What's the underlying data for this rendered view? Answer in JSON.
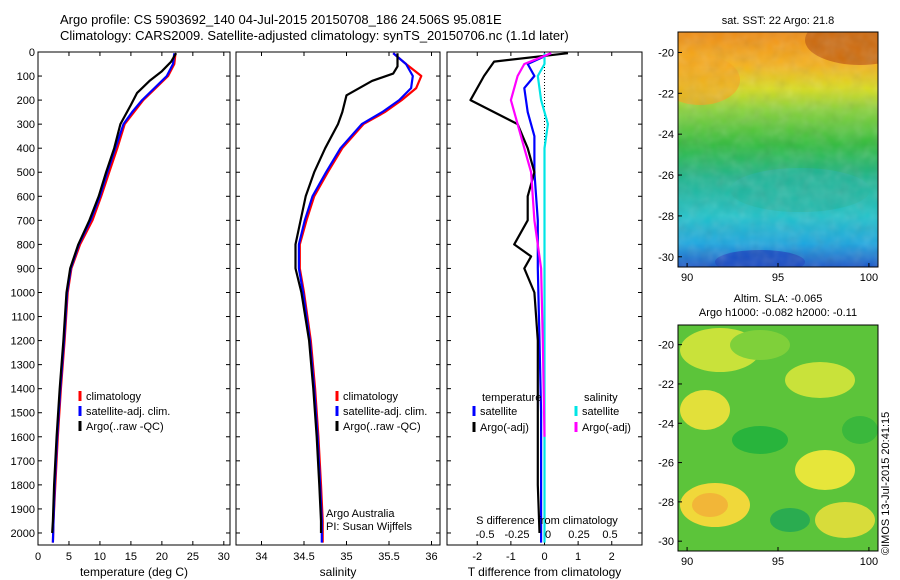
{
  "header": {
    "line1": "Argo profile: CS 5903692_140 04-Jul-2015 20150708_186 24.506S 95.081E",
    "line2": "Climatology: CARS2009. Satellite-adjusted climatology: synTS_20150706.nc (1.1d later)"
  },
  "stamp": "©IMOS 13-Jul-2015 20:41:15",
  "colors": {
    "climatology": "#ff0000",
    "satellite": "#0000ff",
    "argo": "#000000",
    "sal_satellite": "#00e5e5",
    "sal_argo": "#ff00ff"
  },
  "chart_data": [
    {
      "type": "line",
      "panel": "temperature",
      "xlabel": "temperature (deg C)",
      "ylabel": "",
      "xlim": [
        0,
        31
      ],
      "ylim": [
        2050,
        0
      ],
      "xticks": [
        0,
        5,
        10,
        15,
        20,
        25,
        30
      ],
      "yticks": [
        0,
        100,
        200,
        300,
        400,
        500,
        600,
        700,
        800,
        900,
        1000,
        1100,
        1200,
        1300,
        1400,
        1500,
        1600,
        1700,
        1800,
        1900,
        2000
      ],
      "legend": [
        "climatology",
        "satellite-adj. clim.",
        "Argo(..raw -QC)"
      ],
      "series": [
        {
          "name": "climatology",
          "color": "#ff0000",
          "points": [
            [
              22.2,
              5
            ],
            [
              22.0,
              50
            ],
            [
              21.0,
              100
            ],
            [
              19.0,
              150
            ],
            [
              17.0,
              200
            ],
            [
              15.5,
              250
            ],
            [
              14.0,
              300
            ],
            [
              12.8,
              400
            ],
            [
              11.5,
              500
            ],
            [
              10.2,
              600
            ],
            [
              8.8,
              700
            ],
            [
              6.8,
              800
            ],
            [
              5.4,
              900
            ],
            [
              4.8,
              1000
            ],
            [
              4.3,
              1200
            ],
            [
              3.7,
              1400
            ],
            [
              3.2,
              1600
            ],
            [
              2.8,
              1800
            ],
            [
              2.5,
              1950
            ],
            [
              2.4,
              2040
            ]
          ]
        },
        {
          "name": "satellite-adj. clim.",
          "color": "#0000ff",
          "points": [
            [
              22.0,
              5
            ],
            [
              21.8,
              50
            ],
            [
              20.8,
              100
            ],
            [
              18.8,
              150
            ],
            [
              16.8,
              200
            ],
            [
              15.2,
              250
            ],
            [
              13.8,
              300
            ],
            [
              12.5,
              400
            ],
            [
              11.2,
              500
            ],
            [
              10.0,
              600
            ],
            [
              8.5,
              700
            ],
            [
              6.6,
              800
            ],
            [
              5.3,
              900
            ],
            [
              4.7,
              1000
            ],
            [
              4.2,
              1200
            ],
            [
              3.6,
              1400
            ],
            [
              3.1,
              1600
            ],
            [
              2.7,
              1800
            ],
            [
              2.5,
              1950
            ],
            [
              2.4,
              2040
            ]
          ]
        },
        {
          "name": "Argo(..raw -QC)",
          "color": "#000000",
          "points": [
            [
              22.3,
              5
            ],
            [
              21.5,
              40
            ],
            [
              20.0,
              80
            ],
            [
              18.0,
              120
            ],
            [
              16.0,
              170
            ],
            [
              15.0,
              220
            ],
            [
              13.3,
              300
            ],
            [
              12.3,
              400
            ],
            [
              11.0,
              500
            ],
            [
              9.8,
              600
            ],
            [
              8.3,
              700
            ],
            [
              6.5,
              800
            ],
            [
              5.2,
              900
            ],
            [
              4.6,
              1000
            ],
            [
              4.1,
              1200
            ],
            [
              3.5,
              1400
            ],
            [
              3.0,
              1600
            ],
            [
              2.6,
              1800
            ],
            [
              2.4,
              1950
            ],
            [
              2.3,
              2000
            ]
          ]
        }
      ]
    },
    {
      "type": "line",
      "panel": "salinity",
      "xlabel": "salinity",
      "ylabel": "",
      "xlim": [
        33.7,
        36.1
      ],
      "ylim": [
        2050,
        0
      ],
      "xticks": [
        34,
        34.5,
        35,
        35.5,
        36
      ],
      "legend": [
        "climatology",
        "satellite-adj. clim.",
        "Argo(..raw -QC)"
      ],
      "annotation": [
        "Argo Australia",
        "PI: Susan Wijffels"
      ],
      "series": [
        {
          "name": "climatology",
          "color": "#ff0000",
          "points": [
            [
              35.55,
              5
            ],
            [
              35.7,
              50
            ],
            [
              35.88,
              100
            ],
            [
              35.82,
              150
            ],
            [
              35.65,
              200
            ],
            [
              35.45,
              250
            ],
            [
              35.2,
              300
            ],
            [
              34.95,
              400
            ],
            [
              34.78,
              500
            ],
            [
              34.62,
              600
            ],
            [
              34.53,
              700
            ],
            [
              34.45,
              800
            ],
            [
              34.45,
              900
            ],
            [
              34.5,
              1000
            ],
            [
              34.58,
              1200
            ],
            [
              34.63,
              1400
            ],
            [
              34.67,
              1600
            ],
            [
              34.7,
              1800
            ],
            [
              34.72,
              1950
            ],
            [
              34.72,
              2040
            ]
          ]
        },
        {
          "name": "satellite-adj. clim.",
          "color": "#0000ff",
          "points": [
            [
              35.55,
              5
            ],
            [
              35.7,
              50
            ],
            [
              35.78,
              100
            ],
            [
              35.76,
              150
            ],
            [
              35.62,
              200
            ],
            [
              35.42,
              250
            ],
            [
              35.18,
              300
            ],
            [
              34.93,
              400
            ],
            [
              34.76,
              500
            ],
            [
              34.6,
              600
            ],
            [
              34.51,
              700
            ],
            [
              34.44,
              800
            ],
            [
              34.44,
              900
            ],
            [
              34.49,
              1000
            ],
            [
              34.57,
              1200
            ],
            [
              34.62,
              1400
            ],
            [
              34.66,
              1600
            ],
            [
              34.69,
              1800
            ],
            [
              34.71,
              1950
            ],
            [
              34.71,
              2040
            ]
          ]
        },
        {
          "name": "Argo(..raw -QC)",
          "color": "#000000",
          "points": [
            [
              35.6,
              5
            ],
            [
              35.6,
              60
            ],
            [
              35.55,
              90
            ],
            [
              35.3,
              120
            ],
            [
              35.0,
              180
            ],
            [
              34.95,
              250
            ],
            [
              34.9,
              300
            ],
            [
              34.75,
              400
            ],
            [
              34.62,
              500
            ],
            [
              34.52,
              600
            ],
            [
              34.46,
              700
            ],
            [
              34.4,
              800
            ],
            [
              34.4,
              900
            ],
            [
              34.47,
              1000
            ],
            [
              34.56,
              1200
            ],
            [
              34.61,
              1400
            ],
            [
              34.65,
              1600
            ],
            [
              34.68,
              1800
            ],
            [
              34.7,
              1950
            ],
            [
              34.7,
              2000
            ]
          ]
        }
      ]
    },
    {
      "type": "line",
      "panel": "difference",
      "xlabel": "T difference from climatology",
      "top_axis_label": "S difference from climatology",
      "xlim": [
        -2.9,
        2.9
      ],
      "ylim": [
        2050,
        0
      ],
      "xticks": [
        -2,
        -1,
        0,
        1,
        2
      ],
      "top_ticks": [
        "-0.5",
        "-0.25",
        "0",
        "0.25",
        "0.5"
      ],
      "legend_left_title": "temperature",
      "legend_right_title": "salinity",
      "legend": [
        "satellite",
        "Argo(-adj)",
        "satellite",
        "Argo(-adj)"
      ],
      "series": [
        {
          "name": "temperature satellite",
          "color": "#0000ff",
          "points": [
            [
              0.2,
              5
            ],
            [
              -0.5,
              50
            ],
            [
              -0.3,
              100
            ],
            [
              -0.6,
              150
            ],
            [
              -0.5,
              250
            ],
            [
              -0.3,
              350
            ],
            [
              -0.3,
              500
            ],
            [
              -0.2,
              700
            ],
            [
              -0.2,
              900
            ],
            [
              -0.15,
              1200
            ],
            [
              -0.1,
              1500
            ],
            [
              -0.1,
              1800
            ],
            [
              -0.1,
              2040
            ]
          ]
        },
        {
          "name": "temperature Argo(-adj)",
          "color": "#000000",
          "points": [
            [
              0.7,
              5
            ],
            [
              -1.5,
              40
            ],
            [
              -1.8,
              100
            ],
            [
              -2.2,
              200
            ],
            [
              -0.8,
              300
            ],
            [
              -0.5,
              400
            ],
            [
              -0.3,
              500
            ],
            [
              -0.5,
              600
            ],
            [
              -0.5,
              700
            ],
            [
              -0.9,
              800
            ],
            [
              -0.4,
              850
            ],
            [
              -0.6,
              900
            ],
            [
              -0.3,
              1000
            ],
            [
              -0.2,
              1200
            ],
            [
              -0.2,
              1500
            ],
            [
              -0.2,
              1800
            ],
            [
              -0.15,
              2000
            ]
          ]
        },
        {
          "name": "salinity satellite",
          "color": "#00e5e5",
          "points": [
            [
              0.0,
              5
            ],
            [
              0.0,
              50
            ],
            [
              -0.2,
              100
            ],
            [
              -0.1,
              200
            ],
            [
              0.1,
              300
            ],
            [
              0.0,
              400
            ],
            [
              0.0,
              600
            ],
            [
              0.0,
              900
            ],
            [
              0.0,
              1200
            ],
            [
              0.0,
              1500
            ],
            [
              0.0,
              1800
            ],
            [
              0.0,
              2040
            ]
          ]
        },
        {
          "name": "salinity Argo(-adj)",
          "color": "#ff00ff",
          "points": [
            [
              0.2,
              5
            ],
            [
              -0.6,
              50
            ],
            [
              -0.8,
              100
            ],
            [
              -1.0,
              200
            ],
            [
              -0.8,
              300
            ],
            [
              -0.6,
              400
            ],
            [
              -0.4,
              500
            ],
            [
              -0.3,
              700
            ],
            [
              -0.1,
              900
            ],
            [
              -0.05,
              1200
            ],
            [
              0.0,
              1600
            ]
          ]
        }
      ]
    },
    {
      "type": "heatmap",
      "panel": "sst-map",
      "title": "sat. SST: 22 Argo: 21.8",
      "xlim": [
        89.5,
        100.5
      ],
      "ylim": [
        -30.5,
        -19
      ],
      "xticks": [
        90,
        95,
        100
      ],
      "yticks": [
        -20,
        -22,
        -24,
        -26,
        -28,
        -30
      ]
    },
    {
      "type": "heatmap",
      "panel": "sla-map",
      "title_lines": [
        "Altim. SLA: -0.065",
        "Argo h1000: -0.082 h2000: -0.11"
      ],
      "xlim": [
        89.5,
        100.5
      ],
      "ylim": [
        -30.5,
        -19
      ],
      "xticks": [
        90,
        95,
        100
      ],
      "yticks": [
        -20,
        -22,
        -24,
        -26,
        -28,
        -30
      ]
    }
  ]
}
